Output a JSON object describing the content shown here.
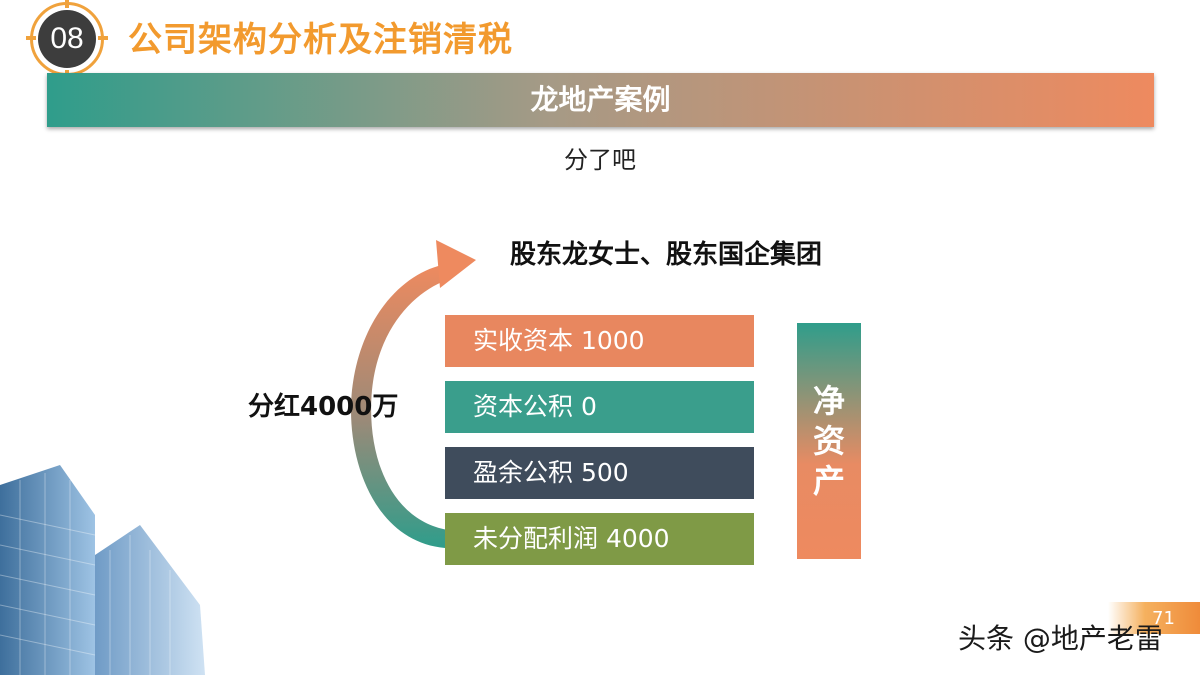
{
  "header": {
    "section_number": "08",
    "title": "公司架构分析及注销清税"
  },
  "banner": {
    "title": "龙地产案例"
  },
  "subtitle": "分了吧",
  "diagram": {
    "shareholders": "股东龙女士、股东国企集团",
    "dividend_label": "分红4000万",
    "boxes": [
      {
        "label": "实收资本 1000",
        "color": "#e8875f"
      },
      {
        "label": "资本公积 0",
        "color": "#3a9e8c"
      },
      {
        "label": "盈余公积 500",
        "color": "#3f4c5c"
      },
      {
        "label": "未分配利润 4000",
        "color": "#7f9a46"
      }
    ],
    "net_assets_chars": [
      "净",
      "资",
      "产"
    ]
  },
  "footer": {
    "page_number": "71",
    "watermark": "头条 @地产老雷"
  }
}
